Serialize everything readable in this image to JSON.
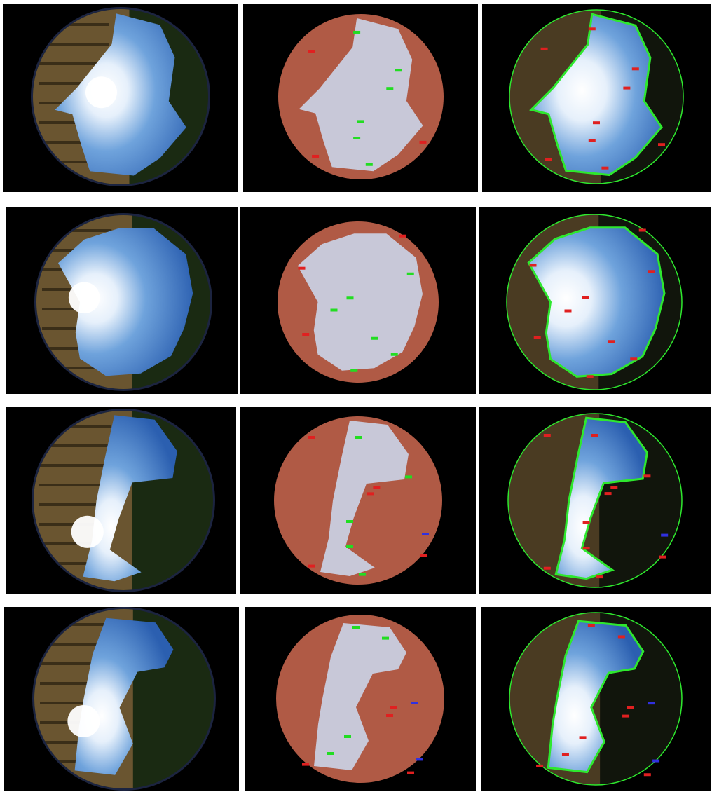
{
  "colors": {
    "panel_bg": "#000000",
    "mask_obstruction": "#b05a45",
    "mask_sky": "#c8c8d8",
    "outline_green": "#2ee82e",
    "label_red": "#e02020",
    "label_green": "#22dd22",
    "label_blue": "#3030e0",
    "sky_bright": "#ffffff",
    "sky_mid": "#6fa3dc",
    "sky_deep": "#2b5fb0",
    "building": "#6a5530",
    "tree": "#1a2a12"
  },
  "grid": {
    "rows": 4,
    "columns": [
      "photo",
      "mask",
      "overlay"
    ]
  },
  "rows": [
    {
      "sun_dx": -0.22,
      "sun_dy": -0.05,
      "buildings": "left-top",
      "trees": "small-right"
    },
    {
      "sun_dx": -0.45,
      "sun_dy": -0.05,
      "buildings": "left",
      "trees": "small-bottom"
    },
    {
      "sun_dx": -0.4,
      "sun_dy": 0.35,
      "buildings": "left-half",
      "trees": "big-right"
    },
    {
      "sun_dx": -0.45,
      "sun_dy": 0.25,
      "buildings": "left-half",
      "trees": "big-right-low"
    }
  ]
}
